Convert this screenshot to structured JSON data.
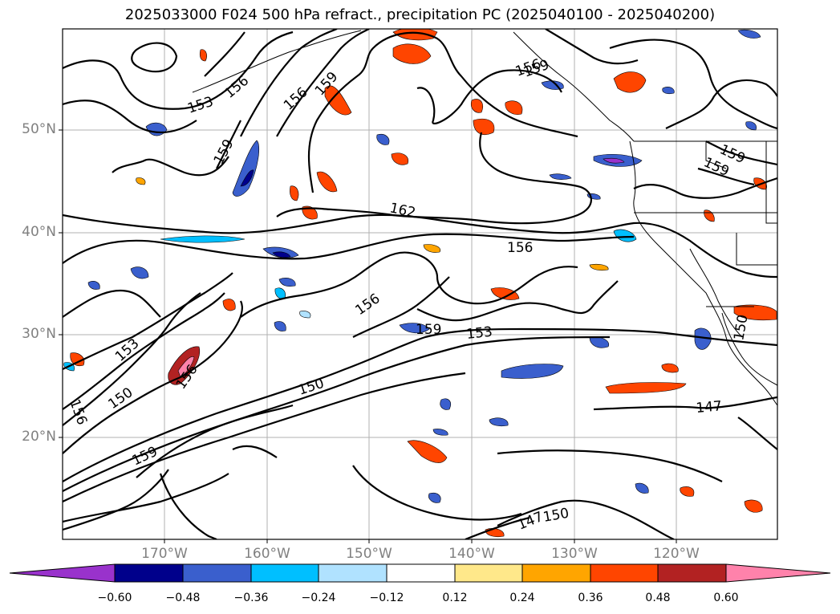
{
  "title": "2025033000 F024 500 hPa refract., precipitation PC (2025040100 - 2025040200)",
  "latitude_labels": [
    "50°N",
    "40°N",
    "30°N",
    "20°N"
  ],
  "longitude_labels": [
    "170°W",
    "160°W",
    "150°W",
    "140°W",
    "130°W",
    "120°W"
  ],
  "contour_labels": [
    "153",
    "156",
    "159",
    "156",
    "159",
    "162",
    "156",
    "159",
    "159",
    "153",
    "156",
    "150",
    "156",
    "156",
    "159",
    "153",
    "150",
    "159",
    "147",
    "147",
    "150",
    "150",
    "156",
    "159"
  ],
  "colorbar": {
    "tick_labels": [
      "−0.60",
      "−0.48",
      "−0.36",
      "−0.24",
      "−0.12",
      "0.12",
      "0.24",
      "0.36",
      "0.48",
      "0.60"
    ],
    "colors": [
      "#9932cc",
      "#00008b",
      "#3a5fcd",
      "#00bfff",
      "#b0e2ff",
      "#ffffff",
      "#ffe88a",
      "#ffa500",
      "#ff4500",
      "#b22222",
      "#ff82ab"
    ]
  }
}
